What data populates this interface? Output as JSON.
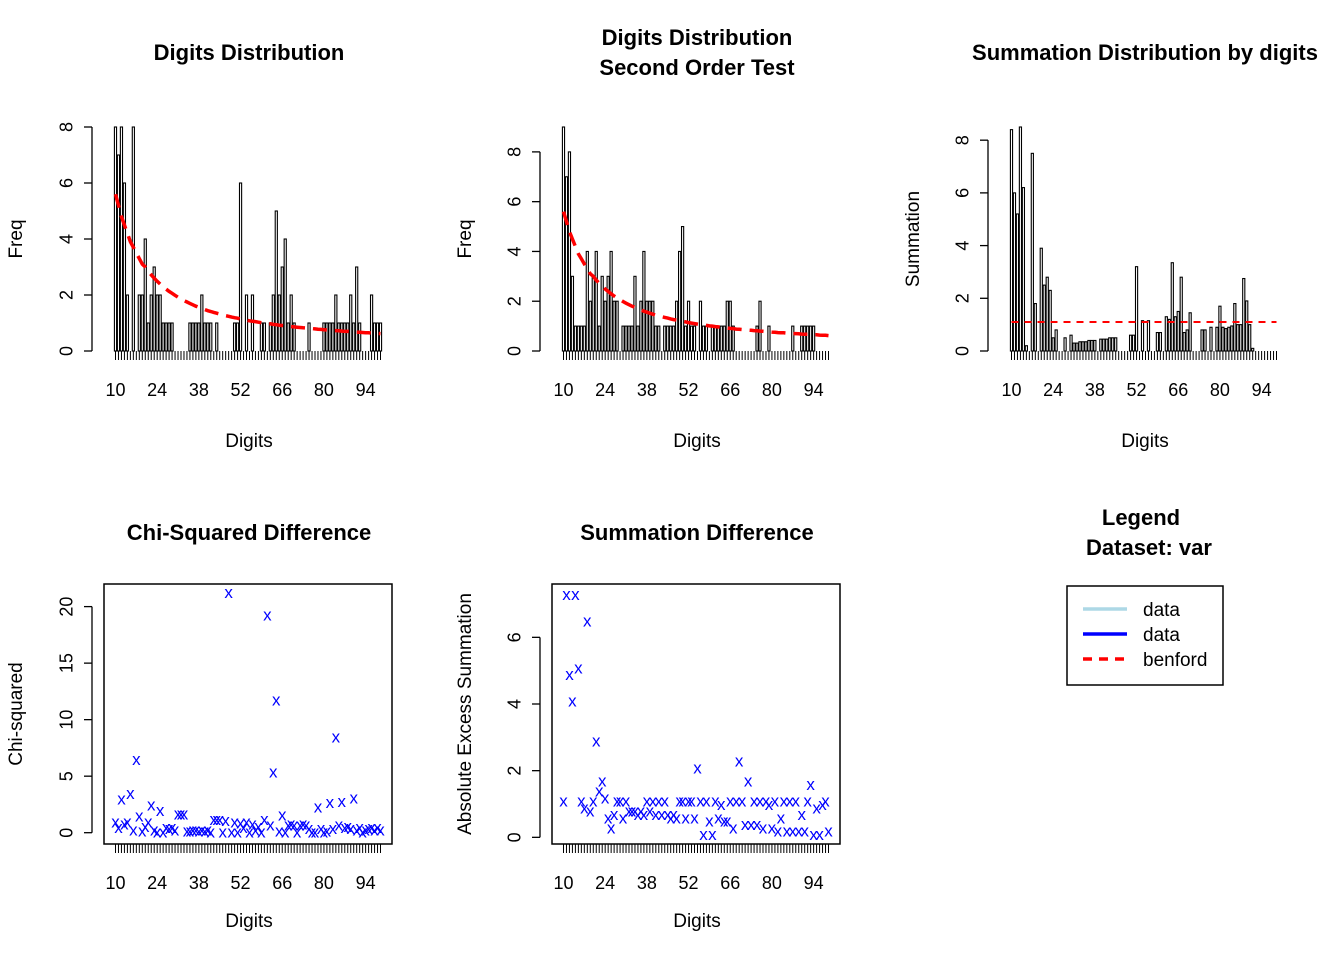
{
  "chart_data": [
    {
      "id": "digits",
      "type": "bar",
      "title": [
        "Digits Distribution"
      ],
      "xlabel": "Digits",
      "ylabel": "Freq",
      "ylim": [
        0,
        8
      ],
      "yticks": [
        0,
        2,
        4,
        6,
        8
      ],
      "xtick_labels": [
        "10",
        "24",
        "38",
        "52",
        "66",
        "80",
        "94"
      ],
      "categories_range": [
        10,
        99
      ],
      "series": [
        {
          "name": "data",
          "values": [
            8,
            7,
            8,
            6,
            2,
            0,
            8,
            0,
            2,
            2,
            4,
            1,
            2,
            3,
            2,
            2,
            1,
            1,
            1,
            1,
            0,
            0,
            0,
            0,
            0,
            1,
            1,
            1,
            1,
            2,
            1,
            1,
            1,
            0,
            1,
            0,
            0,
            0,
            0,
            0,
            1,
            1,
            6,
            0,
            2,
            0,
            2,
            0,
            0,
            1,
            1,
            0,
            1,
            2,
            5,
            2,
            3,
            4,
            1,
            2,
            1,
            0,
            0,
            0,
            0,
            1,
            0,
            0,
            0,
            0,
            1,
            1,
            1,
            1,
            2,
            1,
            1,
            1,
            1,
            2,
            1,
            3,
            1,
            0,
            0,
            0,
            2,
            1,
            1,
            1
          ]
        },
        {
          "name": "benford",
          "values": [
            5.6,
            5.2,
            4.8,
            4.5,
            4.2,
            3.9,
            3.7,
            3.5,
            3.3,
            3.1,
            3.0,
            2.85,
            2.72,
            2.6,
            2.49,
            2.39,
            2.3,
            2.21,
            2.13,
            2.06,
            1.99,
            1.92,
            1.86,
            1.8,
            1.75,
            1.7,
            1.65,
            1.6,
            1.56,
            1.52,
            1.48,
            1.44,
            1.41,
            1.38,
            1.35,
            1.32,
            1.29,
            1.26,
            1.24,
            1.21,
            1.19,
            1.17,
            1.14,
            1.12,
            1.1,
            1.08,
            1.06,
            1.05,
            1.03,
            1.01,
            1.0,
            0.98,
            0.97,
            0.95,
            0.94,
            0.92,
            0.91,
            0.9,
            0.88,
            0.87,
            0.86,
            0.85,
            0.84,
            0.83,
            0.82,
            0.81,
            0.8,
            0.79,
            0.78,
            0.77,
            0.76,
            0.75,
            0.74,
            0.73,
            0.73,
            0.72,
            0.71,
            0.7,
            0.7,
            0.69,
            0.68,
            0.67,
            0.67,
            0.66,
            0.65,
            0.65,
            0.64,
            0.63,
            0.63,
            0.62
          ]
        }
      ]
    },
    {
      "id": "second",
      "type": "bar",
      "title": [
        "Digits Distribution",
        "Second Order Test"
      ],
      "xlabel": "Digits",
      "ylabel": "Freq",
      "ylim": [
        0,
        9
      ],
      "yticks": [
        0,
        2,
        4,
        6,
        8
      ],
      "xtick_labels": [
        "10",
        "24",
        "38",
        "52",
        "66",
        "80",
        "94"
      ],
      "categories_range": [
        10,
        99
      ],
      "series": [
        {
          "name": "data",
          "values": [
            9,
            7,
            8,
            3,
            1,
            1,
            1,
            1,
            4,
            2,
            3,
            4,
            1,
            3,
            2,
            3,
            4,
            2,
            2,
            0,
            1,
            1,
            1,
            1,
            3,
            1,
            2,
            4,
            2,
            2,
            2,
            1,
            1,
            0,
            1,
            1,
            1,
            1,
            2,
            4,
            5,
            1,
            2,
            1,
            1,
            0,
            2,
            1,
            1,
            0,
            1,
            1,
            1,
            1,
            1,
            2,
            2,
            1,
            0,
            0,
            0,
            0,
            0,
            0,
            0,
            1,
            2,
            0,
            0,
            1,
            0,
            0,
            0,
            0,
            0,
            0,
            0,
            1,
            0,
            0,
            1,
            1,
            1,
            1,
            1,
            0,
            0,
            0,
            0,
            0
          ]
        },
        {
          "name": "benford",
          "values": [
            5.6,
            5.2,
            4.8,
            4.5,
            4.2,
            3.9,
            3.7,
            3.5,
            3.3,
            3.1,
            3.0,
            2.85,
            2.72,
            2.6,
            2.49,
            2.39,
            2.3,
            2.21,
            2.13,
            2.06,
            1.99,
            1.92,
            1.86,
            1.8,
            1.75,
            1.7,
            1.65,
            1.6,
            1.56,
            1.52,
            1.48,
            1.44,
            1.41,
            1.38,
            1.35,
            1.32,
            1.29,
            1.26,
            1.24,
            1.21,
            1.19,
            1.17,
            1.14,
            1.12,
            1.1,
            1.08,
            1.06,
            1.05,
            1.03,
            1.01,
            1.0,
            0.98,
            0.97,
            0.95,
            0.94,
            0.92,
            0.91,
            0.9,
            0.88,
            0.87,
            0.86,
            0.85,
            0.84,
            0.83,
            0.82,
            0.81,
            0.8,
            0.79,
            0.78,
            0.77,
            0.76,
            0.75,
            0.74,
            0.73,
            0.73,
            0.72,
            0.71,
            0.7,
            0.7,
            0.69,
            0.68,
            0.67,
            0.67,
            0.66,
            0.65,
            0.65,
            0.64,
            0.63,
            0.63,
            0.62
          ]
        }
      ]
    },
    {
      "id": "summation",
      "type": "bar",
      "title": [
        "Summation Distribution by digits"
      ],
      "xlabel": "Digits",
      "ylabel": "Summation",
      "ylim": [
        0,
        8.5
      ],
      "yticks": [
        0,
        2,
        4,
        6,
        8
      ],
      "xtick_labels": [
        "10",
        "24",
        "38",
        "52",
        "66",
        "80",
        "94"
      ],
      "categories_range": [
        10,
        99
      ],
      "series": [
        {
          "name": "data",
          "values": [
            8.4,
            6.0,
            5.2,
            8.5,
            6.2,
            0.2,
            0.0,
            7.5,
            1.8,
            0.0,
            3.9,
            2.5,
            2.8,
            2.3,
            0.5,
            0.8,
            0.0,
            0.0,
            0.5,
            0.0,
            0.6,
            0.3,
            0.3,
            0.35,
            0.35,
            0.35,
            0.4,
            0.4,
            0.4,
            0.0,
            0.45,
            0.45,
            0.45,
            0.5,
            0.5,
            0.5,
            0.0,
            0.0,
            0.0,
            0.0,
            0.6,
            0.6,
            3.2,
            0.0,
            1.15,
            0.0,
            1.15,
            0.0,
            0.0,
            0.7,
            0.7,
            0.0,
            1.3,
            1.2,
            3.35,
            1.3,
            1.5,
            2.8,
            0.7,
            0.8,
            1.45,
            0.0,
            0.0,
            0.0,
            0.8,
            0.8,
            0.0,
            0.9,
            0.0,
            0.9,
            1.7,
            0.9,
            0.85,
            0.9,
            0.95,
            1.8,
            1.0,
            1.0,
            2.75,
            1.9,
            1.0,
            0.1,
            0.0,
            0.0,
            0.0,
            0.0,
            0.0,
            0.0,
            0.0,
            0.0
          ]
        },
        {
          "name": "benford",
          "values": [
            1.1,
            1.1,
            1.1,
            1.1,
            1.1,
            1.1,
            1.1,
            1.1,
            1.1,
            1.1,
            1.1,
            1.1,
            1.1,
            1.1,
            1.1,
            1.1,
            1.1,
            1.1,
            1.1,
            1.1,
            1.1,
            1.1,
            1.1,
            1.1,
            1.1,
            1.1,
            1.1,
            1.1,
            1.1,
            1.1,
            1.1,
            1.1,
            1.1,
            1.1,
            1.1,
            1.1,
            1.1,
            1.1,
            1.1,
            1.1,
            1.1,
            1.1,
            1.1,
            1.1,
            1.1,
            1.1,
            1.1,
            1.1,
            1.1,
            1.1,
            1.1,
            1.1,
            1.1,
            1.1,
            1.1,
            1.1,
            1.1,
            1.1,
            1.1,
            1.1,
            1.1,
            1.1,
            1.1,
            1.1,
            1.1,
            1.1,
            1.1,
            1.1,
            1.1,
            1.1,
            1.1,
            1.1,
            1.1,
            1.1,
            1.1,
            1.1,
            1.1,
            1.1,
            1.1,
            1.1,
            1.1,
            1.1,
            1.1,
            1.1,
            1.1,
            1.1,
            1.1,
            1.1,
            1.1,
            1.1
          ]
        }
      ]
    },
    {
      "id": "chisq",
      "type": "scatter",
      "title": [
        "Chi-Squared Difference"
      ],
      "xlabel": "Digits",
      "ylabel": "Chi-squared",
      "ylim": [
        -1,
        22
      ],
      "yticks": [
        0,
        5,
        10,
        15,
        20
      ],
      "xtick_labels": [
        "10",
        "24",
        "38",
        "52",
        "66",
        "80",
        "94"
      ],
      "categories_range": [
        10,
        99
      ],
      "marker": "x",
      "series": [
        {
          "name": "data",
          "values": [
            1.0,
            0.5,
            3.0,
            0.8,
            1.0,
            3.5,
            0.3,
            6.5,
            1.5,
            0.2,
            0.6,
            1.0,
            2.5,
            0.3,
            0.1,
            2.0,
            0.1,
            0.5,
            0.4,
            0.5,
            0.3,
            1.7,
            1.7,
            1.7,
            0.2,
            0.2,
            0.3,
            0.3,
            0.2,
            0.3,
            0.2,
            0.3,
            0.1,
            1.2,
            1.2,
            1.2,
            0.1,
            1.1,
            21.3,
            0.1,
            1.0,
            0.1,
            0.9,
            0.5,
            1.0,
            0.1,
            0.8,
            0.3,
            0.6,
            0.1,
            1.2,
            19.3,
            0.7,
            5.4,
            11.8,
            0.2,
            1.6,
            0.1,
            0.7,
            0.8,
            0.7,
            0.1,
            0.7,
            0.8,
            0.7,
            0.4,
            0.1,
            0.1,
            2.3,
            0.4,
            0.1,
            0.2,
            2.7,
            0.4,
            8.5,
            0.7,
            2.8,
            0.5,
            0.6,
            0.4,
            3.1,
            0.3,
            0.5,
            0.1,
            0.3,
            0.4,
            0.5,
            0.3,
            0.5,
            0.3
          ]
        }
      ]
    },
    {
      "id": "sumdiff",
      "type": "scatter",
      "title": [
        "Summation Difference"
      ],
      "xlabel": "Digits",
      "ylabel": "Absolute Excess Summation",
      "ylim": [
        -0.2,
        7.6
      ],
      "yticks": [
        0,
        2,
        4,
        6
      ],
      "xtick_labels": [
        "10",
        "24",
        "38",
        "52",
        "66",
        "80",
        "94"
      ],
      "categories_range": [
        10,
        99
      ],
      "marker": "x",
      "series": [
        {
          "name": "data",
          "values": [
            1.1,
            7.3,
            4.9,
            4.1,
            7.3,
            5.1,
            1.1,
            0.9,
            6.5,
            0.8,
            1.1,
            2.9,
            1.4,
            1.7,
            1.2,
            0.6,
            0.3,
            0.7,
            1.1,
            1.1,
            0.6,
            1.1,
            0.8,
            0.8,
            0.8,
            0.7,
            0.8,
            0.7,
            1.1,
            0.8,
            1.1,
            0.7,
            1.1,
            0.7,
            1.1,
            0.7,
            0.6,
            0.7,
            0.6,
            1.1,
            1.1,
            0.6,
            1.1,
            1.1,
            0.6,
            2.1,
            1.1,
            0.1,
            1.1,
            0.5,
            0.1,
            1.1,
            0.6,
            1.0,
            0.5,
            0.5,
            1.1,
            0.3,
            1.1,
            2.3,
            1.1,
            0.4,
            1.7,
            0.4,
            1.1,
            0.4,
            1.1,
            0.3,
            1.1,
            1.0,
            0.3,
            1.1,
            0.2,
            0.6,
            1.1,
            0.2,
            1.1,
            0.2,
            1.1,
            0.2,
            0.7,
            0.2,
            1.1,
            1.6,
            0.1,
            0.9,
            0.1,
            1.0,
            1.1,
            0.2
          ]
        }
      ]
    }
  ],
  "legend": {
    "title_line1": "Legend",
    "title_line2": "Dataset: var",
    "items": [
      {
        "label": "data",
        "color": "#add8e6",
        "style": "solid"
      },
      {
        "label": "data",
        "color": "#0000ff",
        "style": "solid"
      },
      {
        "label": "benford",
        "color": "#ff0000",
        "style": "dashed"
      }
    ]
  },
  "colors": {
    "bar_outline": "#000000",
    "bar_fill": "#ffffff",
    "benford_line": "#ff0000",
    "scatter_marker": "#0000ff"
  }
}
